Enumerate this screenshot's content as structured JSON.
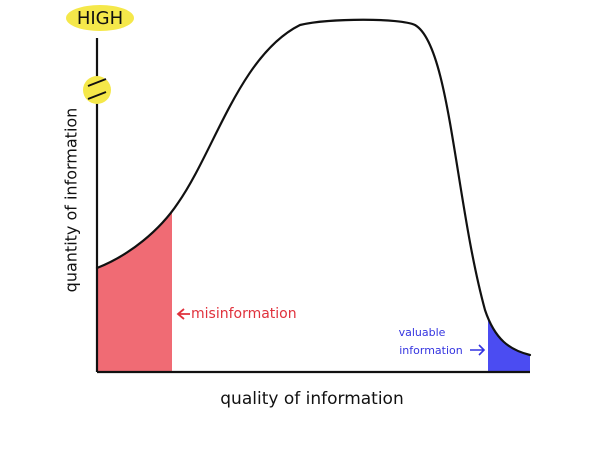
{
  "labels": {
    "high": "HIGH",
    "y_axis": "quantity of information",
    "x_axis": "quality of information",
    "misinformation": "misinformation",
    "valuable": [
      "valuable",
      "information"
    ]
  }
}
